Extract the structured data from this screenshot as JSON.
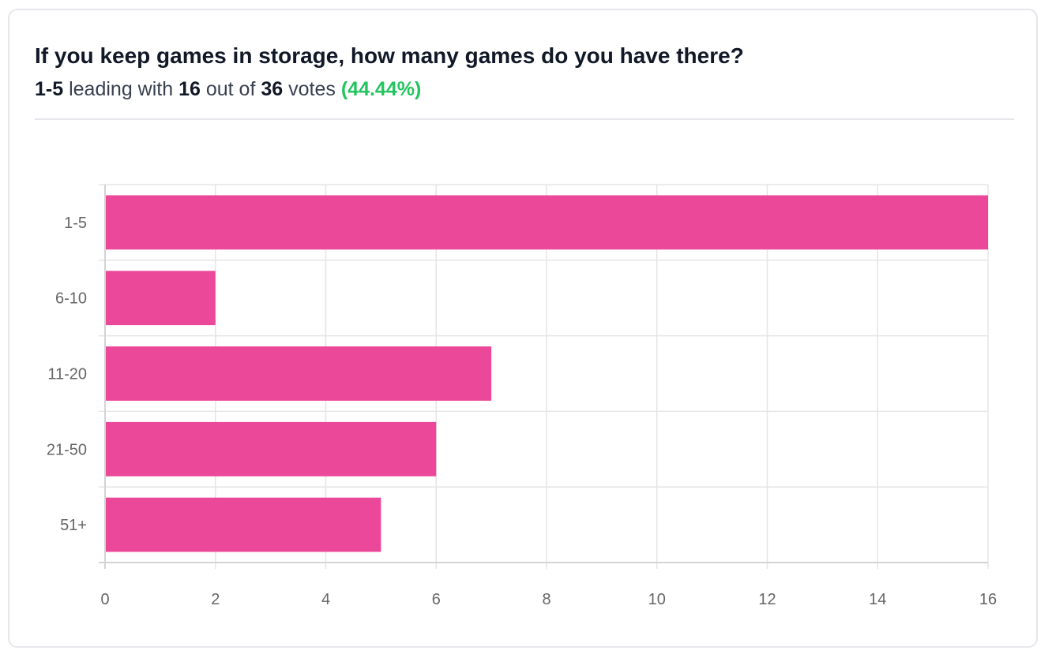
{
  "header": {
    "title": "If you keep games in storage, how many games do you have there?",
    "leader": "1-5",
    "leading_with_text": "leading with",
    "leader_votes": "16",
    "out_of_text": "out of",
    "total_votes": "36",
    "votes_text": "votes",
    "leader_percent": "(44.44%)"
  },
  "colors": {
    "bar": "#ec4899",
    "grid": "#e5e5e5",
    "percent": "#22c55e"
  },
  "chart_data": {
    "type": "bar",
    "orientation": "horizontal",
    "categories": [
      "1-5",
      "6-10",
      "11-20",
      "21-50",
      "51+"
    ],
    "values": [
      16,
      2,
      7,
      6,
      5
    ],
    "xlim": [
      0,
      16
    ],
    "xticks": [
      "0",
      "2",
      "4",
      "6",
      "8",
      "10",
      "12",
      "14",
      "16"
    ],
    "grid": true,
    "title": "If you keep games in storage, how many games do you have there?",
    "xlabel": "",
    "ylabel": ""
  }
}
